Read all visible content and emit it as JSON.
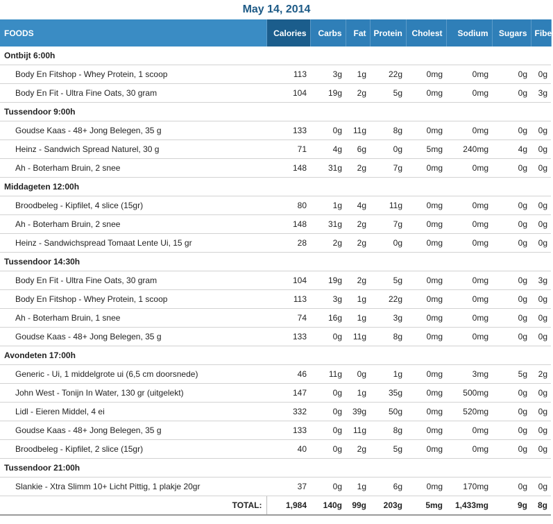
{
  "date": "May 14, 2014",
  "headers": [
    "FOODS",
    "Calories",
    "Carbs",
    "Fat",
    "Protein",
    "Cholest",
    "Sodium",
    "Sugars",
    "Fiber"
  ],
  "meals": [
    {
      "name": "Ontbijt 6:00h",
      "items": [
        {
          "food": "Body En Fitshop - Whey Protein, 1 scoop",
          "calories": "113",
          "carbs": "3g",
          "fat": "1g",
          "protein": "22g",
          "cholest": "0mg",
          "sodium": "0mg",
          "sugars": "0g",
          "fiber": "0g"
        },
        {
          "food": "Body En Fit - Ultra Fine Oats, 30 gram",
          "calories": "104",
          "carbs": "19g",
          "fat": "2g",
          "protein": "5g",
          "cholest": "0mg",
          "sodium": "0mg",
          "sugars": "0g",
          "fiber": "3g"
        }
      ]
    },
    {
      "name": "Tussendoor 9:00h",
      "items": [
        {
          "food": "Goudse Kaas - 48+ Jong Belegen, 35 g",
          "calories": "133",
          "carbs": "0g",
          "fat": "11g",
          "protein": "8g",
          "cholest": "0mg",
          "sodium": "0mg",
          "sugars": "0g",
          "fiber": "0g"
        },
        {
          "food": "Heinz - Sandwich Spread Naturel, 30 g",
          "calories": "71",
          "carbs": "4g",
          "fat": "6g",
          "protein": "0g",
          "cholest": "5mg",
          "sodium": "240mg",
          "sugars": "4g",
          "fiber": "0g"
        },
        {
          "food": "Ah - Boterham Bruin, 2 snee",
          "calories": "148",
          "carbs": "31g",
          "fat": "2g",
          "protein": "7g",
          "cholest": "0mg",
          "sodium": "0mg",
          "sugars": "0g",
          "fiber": "0g"
        }
      ]
    },
    {
      "name": "Middageten 12:00h",
      "items": [
        {
          "food": "Broodbeleg - Kipfilet, 4 slice (15gr)",
          "calories": "80",
          "carbs": "1g",
          "fat": "4g",
          "protein": "11g",
          "cholest": "0mg",
          "sodium": "0mg",
          "sugars": "0g",
          "fiber": "0g"
        },
        {
          "food": "Ah - Boterham Bruin, 2 snee",
          "calories": "148",
          "carbs": "31g",
          "fat": "2g",
          "protein": "7g",
          "cholest": "0mg",
          "sodium": "0mg",
          "sugars": "0g",
          "fiber": "0g"
        },
        {
          "food": "Heinz - Sandwichspread Tomaat Lente Ui, 15 gr",
          "calories": "28",
          "carbs": "2g",
          "fat": "2g",
          "protein": "0g",
          "cholest": "0mg",
          "sodium": "0mg",
          "sugars": "0g",
          "fiber": "0g"
        }
      ]
    },
    {
      "name": "Tussendoor 14:30h",
      "items": [
        {
          "food": "Body En Fit - Ultra Fine Oats, 30 gram",
          "calories": "104",
          "carbs": "19g",
          "fat": "2g",
          "protein": "5g",
          "cholest": "0mg",
          "sodium": "0mg",
          "sugars": "0g",
          "fiber": "3g"
        },
        {
          "food": "Body En Fitshop - Whey Protein, 1 scoop",
          "calories": "113",
          "carbs": "3g",
          "fat": "1g",
          "protein": "22g",
          "cholest": "0mg",
          "sodium": "0mg",
          "sugars": "0g",
          "fiber": "0g"
        },
        {
          "food": "Ah - Boterham Bruin, 1 snee",
          "calories": "74",
          "carbs": "16g",
          "fat": "1g",
          "protein": "3g",
          "cholest": "0mg",
          "sodium": "0mg",
          "sugars": "0g",
          "fiber": "0g"
        },
        {
          "food": "Goudse Kaas - 48+ Jong Belegen, 35 g",
          "calories": "133",
          "carbs": "0g",
          "fat": "11g",
          "protein": "8g",
          "cholest": "0mg",
          "sodium": "0mg",
          "sugars": "0g",
          "fiber": "0g"
        }
      ]
    },
    {
      "name": "Avondeten 17:00h",
      "items": [
        {
          "food": "Generic - Ui, 1 middelgrote ui (6,5 cm doorsnede)",
          "calories": "46",
          "carbs": "11g",
          "fat": "0g",
          "protein": "1g",
          "cholest": "0mg",
          "sodium": "3mg",
          "sugars": "5g",
          "fiber": "2g"
        },
        {
          "food": "John West - Tonijn In Water, 130 gr (uitgelekt)",
          "calories": "147",
          "carbs": "0g",
          "fat": "1g",
          "protein": "35g",
          "cholest": "0mg",
          "sodium": "500mg",
          "sugars": "0g",
          "fiber": "0g"
        },
        {
          "food": "Lidl - Eieren Middel, 4 ei",
          "calories": "332",
          "carbs": "0g",
          "fat": "39g",
          "protein": "50g",
          "cholest": "0mg",
          "sodium": "520mg",
          "sugars": "0g",
          "fiber": "0g"
        },
        {
          "food": "Goudse Kaas - 48+ Jong Belegen, 35 g",
          "calories": "133",
          "carbs": "0g",
          "fat": "11g",
          "protein": "8g",
          "cholest": "0mg",
          "sodium": "0mg",
          "sugars": "0g",
          "fiber": "0g"
        },
        {
          "food": "Broodbeleg - Kipfilet, 2 slice (15gr)",
          "calories": "40",
          "carbs": "0g",
          "fat": "2g",
          "protein": "5g",
          "cholest": "0mg",
          "sodium": "0mg",
          "sugars": "0g",
          "fiber": "0g"
        }
      ]
    },
    {
      "name": "Tussendoor 21:00h",
      "items": [
        {
          "food": "Slankie - Xtra Slimm 10+ Licht Pittig, 1 plakje 20gr",
          "calories": "37",
          "carbs": "0g",
          "fat": "1g",
          "protein": "6g",
          "cholest": "0mg",
          "sodium": "170mg",
          "sugars": "0g",
          "fiber": "0g"
        }
      ]
    }
  ],
  "total": {
    "label": "TOTAL:",
    "calories": "1,984",
    "carbs": "140g",
    "fat": "99g",
    "protein": "203g",
    "cholest": "5mg",
    "sodium": "1,433mg",
    "sugars": "9g",
    "fiber": "8g"
  },
  "colors": {
    "header_bg": "#2f7fb8",
    "header_foods": "#3a8cc4",
    "header_calories": "#1b5d8c",
    "date_text": "#1d5a86"
  }
}
